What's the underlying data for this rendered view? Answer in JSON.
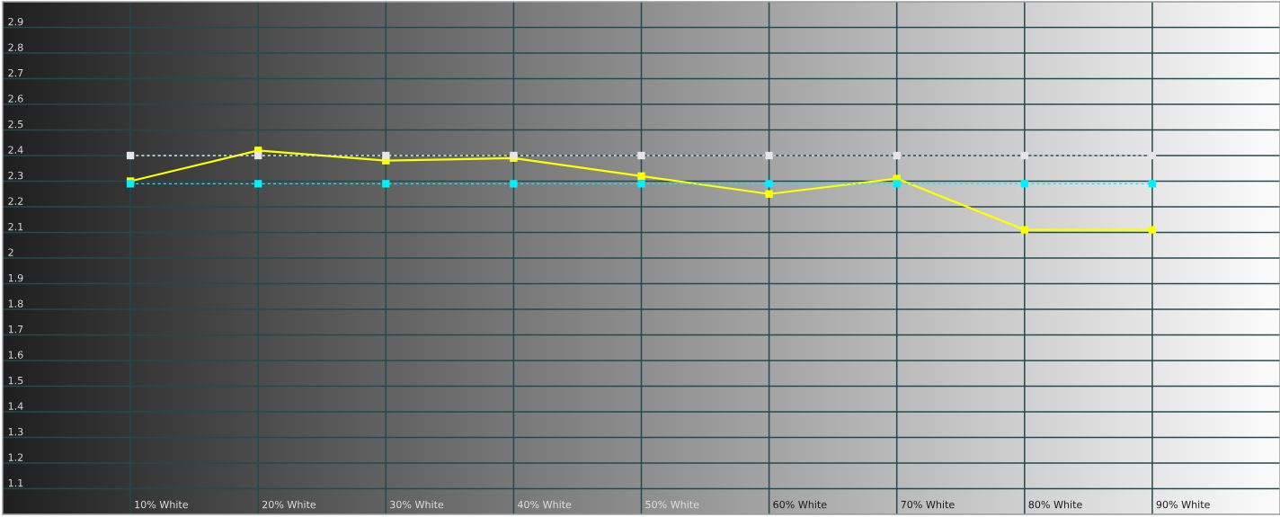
{
  "chart_data": {
    "type": "line",
    "categories": [
      "10% White",
      "20% White",
      "30% White",
      "40% White",
      "50% White",
      "60% White",
      "70% White",
      "80% White",
      "90% White"
    ],
    "series": [
      {
        "color": "#ffff00",
        "values": [
          2.3,
          2.42,
          2.38,
          2.39,
          2.32,
          2.25,
          2.31,
          2.11,
          2.11
        ]
      },
      {
        "color": "#e6e6e6",
        "line_style": "dotted",
        "values": [
          2.4,
          2.4,
          2.4,
          2.4,
          2.4,
          2.4,
          2.4,
          2.4,
          2.4
        ]
      },
      {
        "color": "#00f0ff",
        "line_style": "dotted",
        "values": [
          2.29,
          2.29,
          2.29,
          2.29,
          2.29,
          2.29,
          2.29,
          2.29,
          2.29
        ]
      }
    ],
    "marker": "square",
    "line_style": "solid",
    "ylim": [
      1.0,
      3.0
    ],
    "yticks": [
      1.1,
      1.2,
      1.3,
      1.4,
      1.5,
      1.6,
      1.7,
      1.8,
      1.9,
      2,
      2.1,
      2.2,
      2.3,
      2.4,
      2.5,
      2.6,
      2.7,
      2.8,
      2.9
    ],
    "grid": true
  }
}
